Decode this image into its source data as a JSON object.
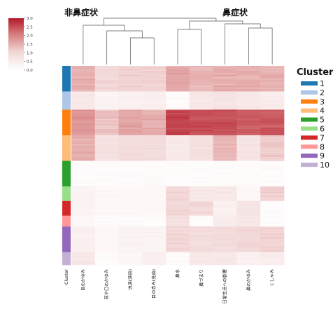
{
  "chart_data": {
    "type": "heatmap",
    "title": "",
    "column_groups": [
      {
        "label": "非鼻症状",
        "columns": [
          "目のかゆみ",
          "耳や口のかゆみ",
          "流涙(涙目)",
          "目の赤み(充血)"
        ]
      },
      {
        "label": "鼻症状",
        "columns": [
          "鼻水",
          "鼻づまり",
          "日常生活への影響",
          "鼻のかゆみ",
          "くしゃみ"
        ]
      }
    ],
    "columns": [
      "目のかゆみ",
      "耳や口のかゆみ",
      "流涙(涙目)",
      "目の赤み(充血)",
      "鼻水",
      "鼻づまり",
      "日常生活への影響",
      "鼻のかゆみ",
      "くしゃみ"
    ],
    "row_annotation_label": "Cluster",
    "clusters": [
      {
        "id": "1",
        "color": "#1f77b4",
        "rows": 14,
        "values": [
          1.5,
          1.0,
          1.1,
          1.1,
          1.6,
          1.4,
          1.5,
          1.5,
          1.5
        ]
      },
      {
        "id": "2",
        "color": "#aec7e8",
        "rows": 10,
        "values": [
          0.6,
          0.3,
          0.4,
          0.4,
          0.1,
          0.6,
          0.7,
          0.6,
          0.5
        ]
      },
      {
        "id": "3",
        "color": "#ff7f0e",
        "rows": 14,
        "values": [
          1.8,
          1.3,
          1.6,
          1.5,
          2.6,
          2.5,
          2.5,
          2.4,
          2.4
        ]
      },
      {
        "id": "4",
        "color": "#ffbb78",
        "rows": 14,
        "values": [
          1.5,
          0.8,
          0.9,
          0.9,
          0.6,
          0.8,
          1.4,
          0.7,
          1.2
        ]
      },
      {
        "id": "5",
        "color": "#2ca02c",
        "rows": 14,
        "values": [
          0.1,
          0.1,
          0.1,
          0.1,
          0.1,
          0.1,
          0.1,
          0.1,
          0.1
        ]
      },
      {
        "id": "6",
        "color": "#98df8a",
        "rows": 8,
        "values": [
          0.3,
          0.2,
          0.2,
          0.2,
          1.0,
          0.6,
          0.6,
          0.2,
          1.1
        ]
      },
      {
        "id": "7",
        "color": "#d62728",
        "rows": 8,
        "values": [
          0.3,
          0.2,
          0.2,
          0.2,
          1.0,
          1.0,
          0.4,
          0.7,
          0.1
        ]
      },
      {
        "id": "8",
        "color": "#ff9896",
        "rows": 6,
        "values": [
          0.2,
          0.1,
          0.1,
          0.1,
          0.8,
          0.1,
          0.5,
          0.6,
          0.1
        ]
      },
      {
        "id": "9",
        "color": "#9467bd",
        "rows": 14,
        "values": [
          0.4,
          0.2,
          0.3,
          0.3,
          1.0,
          0.9,
          0.9,
          1.0,
          1.1
        ]
      },
      {
        "id": "10",
        "color": "#c5b0d5",
        "rows": 7,
        "values": [
          0.6,
          0.1,
          0.2,
          0.4,
          0.1,
          0.6,
          0.6,
          0.4,
          0.5
        ]
      }
    ],
    "colorbar": {
      "min": 0.0,
      "max": 3.0,
      "ticks": [
        "0.0",
        "0.5",
        "1.0",
        "1.5",
        "2.0",
        "2.5",
        "3.0"
      ],
      "low_color": "#ffffff",
      "high_color": "#b2182b"
    },
    "legend": {
      "title": "Cluster",
      "placement": "right",
      "items": [
        "1",
        "2",
        "3",
        "4",
        "5",
        "6",
        "7",
        "8",
        "9",
        "10"
      ]
    }
  }
}
